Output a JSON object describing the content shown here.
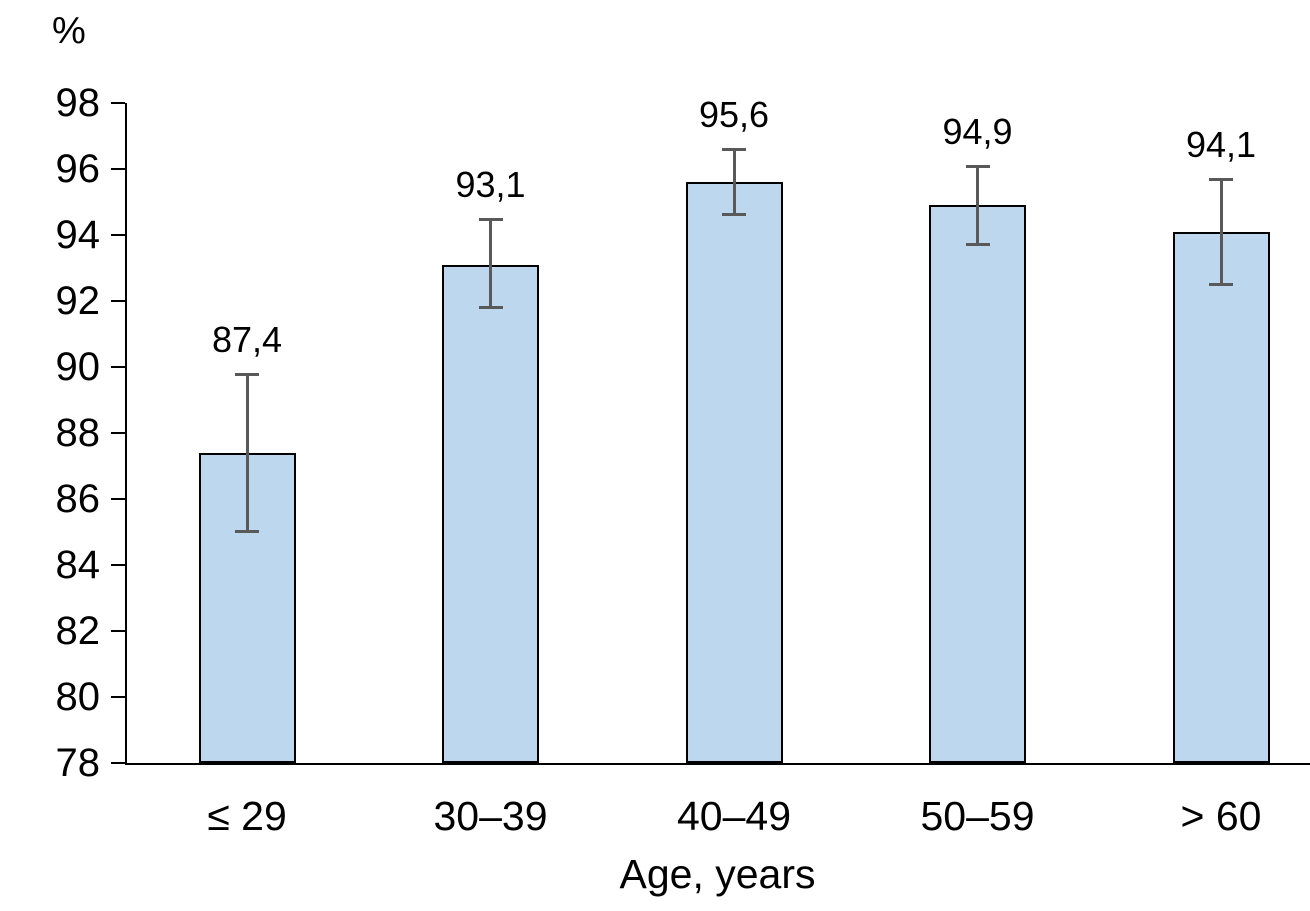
{
  "chart_data": {
    "type": "bar",
    "title": "",
    "ylabel": "%",
    "xlabel": "Age, years",
    "categories": [
      "≤ 29",
      "30–39",
      "40–49",
      "50–59",
      "> 60"
    ],
    "values": [
      87.4,
      93.1,
      95.6,
      94.9,
      94.1
    ],
    "value_labels": [
      "87,4",
      "93,1",
      "95,6",
      "94,9",
      "94,1"
    ],
    "error_low": [
      85.0,
      91.8,
      94.6,
      93.7,
      92.5
    ],
    "error_high": [
      89.8,
      94.5,
      96.6,
      96.1,
      95.7
    ],
    "ylim": [
      78,
      98
    ],
    "yticks": [
      78,
      80,
      82,
      84,
      86,
      88,
      90,
      92,
      94,
      96,
      98
    ],
    "grid": false,
    "legend": "none",
    "bar_fill": "#BDD7EE",
    "bar_border": "#000000",
    "error_color": "#595959",
    "axis_color": "#000000"
  }
}
